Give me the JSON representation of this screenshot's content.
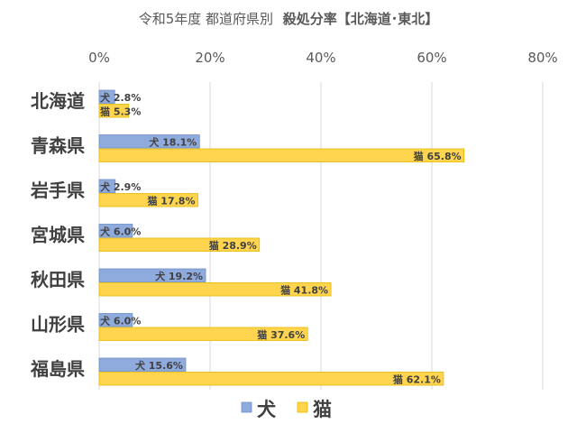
{
  "chart_data": {
    "type": "bar",
    "orientation": "horizontal",
    "title_prefix": "令和5年度 都道府県別",
    "title_main": "殺処分率【北海道･東北】",
    "categories": [
      "北海道",
      "青森県",
      "岩手県",
      "宮城県",
      "秋田県",
      "山形県",
      "福島県"
    ],
    "xlim": [
      0,
      80
    ],
    "ticks": [
      0,
      20,
      40,
      60,
      80
    ],
    "tick_suffix": "%",
    "grid": true,
    "legend_position": "bottom",
    "series": [
      {
        "name": "犬",
        "color": "#8faadc",
        "stroke": "#6f8fc8",
        "values": [
          2.8,
          18.1,
          2.9,
          6.0,
          19.2,
          6.0,
          15.6
        ]
      },
      {
        "name": "猫",
        "color": "#ffd54f",
        "stroke": "#e6b800",
        "values": [
          5.3,
          65.8,
          17.8,
          28.9,
          41.8,
          37.6,
          62.1
        ]
      }
    ]
  }
}
